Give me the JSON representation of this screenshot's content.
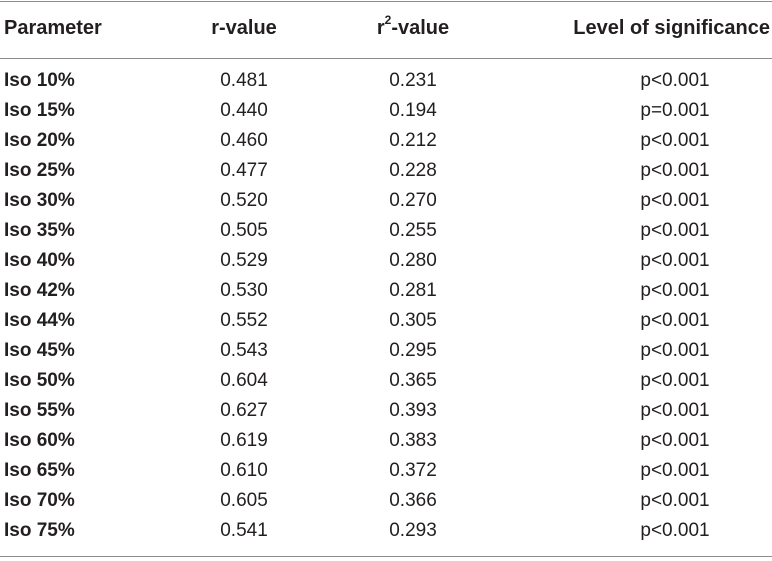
{
  "table": {
    "headers": {
      "parameter": "Parameter",
      "r_value": "r-value",
      "r2_prefix": "r",
      "r2_sup": "2",
      "r2_suffix": "-value",
      "significance": "Level of significance"
    },
    "rows": [
      {
        "parameter": "Iso 10%",
        "r": "0.481",
        "r2": "0.231",
        "p": "p<0.001"
      },
      {
        "parameter": "Iso 15%",
        "r": "0.440",
        "r2": "0.194",
        "p": "p=0.001"
      },
      {
        "parameter": "Iso 20%",
        "r": "0.460",
        "r2": "0.212",
        "p": "p<0.001"
      },
      {
        "parameter": "Iso 25%",
        "r": "0.477",
        "r2": "0.228",
        "p": "p<0.001"
      },
      {
        "parameter": "Iso 30%",
        "r": "0.520",
        "r2": "0.270",
        "p": "p<0.001"
      },
      {
        "parameter": "Iso 35%",
        "r": "0.505",
        "r2": "0.255",
        "p": "p<0.001"
      },
      {
        "parameter": "Iso 40%",
        "r": "0.529",
        "r2": "0.280",
        "p": "p<0.001"
      },
      {
        "parameter": "Iso 42%",
        "r": "0.530",
        "r2": "0.281",
        "p": "p<0.001"
      },
      {
        "parameter": "Iso 44%",
        "r": "0.552",
        "r2": "0.305",
        "p": "p<0.001"
      },
      {
        "parameter": "Iso 45%",
        "r": "0.543",
        "r2": "0.295",
        "p": "p<0.001"
      },
      {
        "parameter": "Iso 50%",
        "r": "0.604",
        "r2": "0.365",
        "p": "p<0.001"
      },
      {
        "parameter": "Iso 55%",
        "r": "0.627",
        "r2": "0.393",
        "p": "p<0.001"
      },
      {
        "parameter": "Iso 60%",
        "r": "0.619",
        "r2": "0.383",
        "p": "p<0.001"
      },
      {
        "parameter": "Iso 65%",
        "r": "0.610",
        "r2": "0.372",
        "p": "p<0.001"
      },
      {
        "parameter": "Iso 70%",
        "r": "0.605",
        "r2": "0.366",
        "p": "p<0.001"
      },
      {
        "parameter": "Iso 75%",
        "r": "0.541",
        "r2": "0.293",
        "p": "p<0.001"
      }
    ]
  }
}
